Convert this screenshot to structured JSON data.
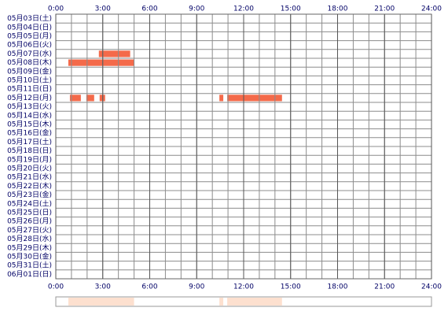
{
  "chart_data": {
    "type": "timeline",
    "categories": [
      "05月03日(土)",
      "05月04日(日)",
      "05月05日(月)",
      "05月06日(火)",
      "05月07日(水)",
      "05月08日(木)",
      "05月09日(金)",
      "05月10日(土)",
      "05月11日(日)",
      "05月12日(月)",
      "05月13日(火)",
      "05月14日(水)",
      "05月15日(木)",
      "05月16日(金)",
      "05月17日(土)",
      "05月18日(日)",
      "05月19日(月)",
      "05月20日(火)",
      "05月21日(水)",
      "05月22日(木)",
      "05月23日(金)",
      "05月24日(土)",
      "05月25日(日)",
      "05月26日(月)",
      "05月27日(火)",
      "05月28日(水)",
      "05月29日(木)",
      "05月30日(金)",
      "05月31日(土)",
      "06月01日(日)"
    ],
    "intervals": [
      [],
      [],
      [],
      [],
      [
        [
          2.75,
          4.75
        ]
      ],
      [
        [
          0.8,
          5.0
        ]
      ],
      [],
      [],
      [],
      [
        [
          0.9,
          1.6
        ],
        [
          1.95,
          2.45
        ],
        [
          2.8,
          3.15
        ],
        [
          10.45,
          10.7
        ],
        [
          10.95,
          14.45
        ]
      ],
      [],
      [],
      [],
      [],
      [],
      [],
      [],
      [],
      [],
      [],
      [],
      [],
      [],
      [],
      [],
      [],
      [],
      [],
      [],
      []
    ],
    "color": "#f46a4a",
    "summary_color": "#fde0cf",
    "xlim": [
      0,
      24
    ],
    "xticks": [
      {
        "value": 0,
        "label": "0:00"
      },
      {
        "value": 3,
        "label": "3:00"
      },
      {
        "value": 6,
        "label": "6:00"
      },
      {
        "value": 9,
        "label": "9:00"
      },
      {
        "value": 12,
        "label": "12:00"
      },
      {
        "value": 15,
        "label": "15:00"
      },
      {
        "value": 18,
        "label": "18:00"
      },
      {
        "value": 21,
        "label": "21:00"
      },
      {
        "value": 24,
        "label": "24:00"
      }
    ],
    "grid_step": 1
  }
}
